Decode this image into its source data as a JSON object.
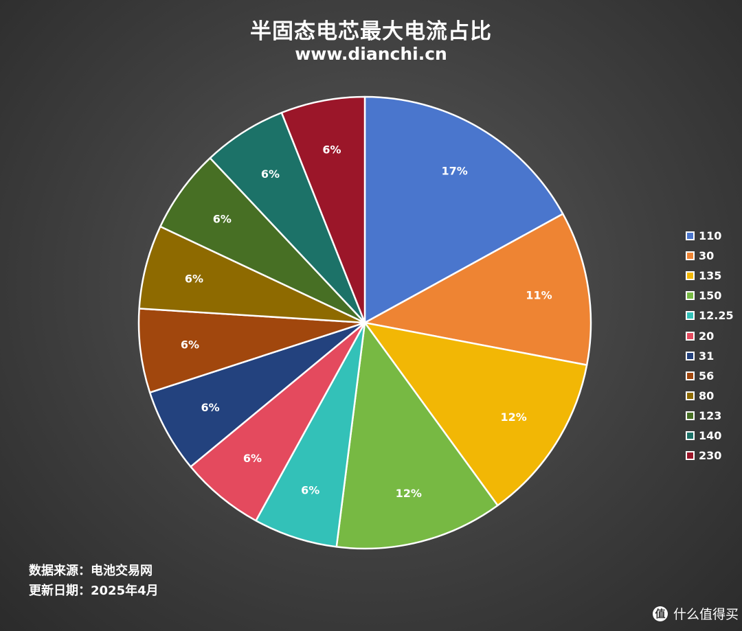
{
  "title": "半固态电芯最大电流占比",
  "subtitle": "www.dianchi.cn",
  "footer": {
    "source": "数据来源：电池交易网",
    "updated": "更新日期：2025年4月"
  },
  "watermark": {
    "logo_text": "值",
    "text": "什么值得买"
  },
  "chart_data": {
    "type": "pie",
    "title": "半固态电芯最大电流占比",
    "legend_position": "right",
    "slices": [
      {
        "label": "110",
        "value": 17,
        "display": "17%",
        "color": "#4a76cd"
      },
      {
        "label": "30",
        "value": 11,
        "display": "11%",
        "color": "#ee8433"
      },
      {
        "label": "135",
        "value": 12,
        "display": "12%",
        "color": "#f2b705"
      },
      {
        "label": "150",
        "value": 12,
        "display": "12%",
        "color": "#77b943"
      },
      {
        "label": "12.25",
        "value": 6,
        "display": "6%",
        "color": "#33c1b8"
      },
      {
        "label": "20",
        "value": 6,
        "display": "6%",
        "color": "#e44a5e"
      },
      {
        "label": "31",
        "value": 6,
        "display": "6%",
        "color": "#23427e"
      },
      {
        "label": "56",
        "value": 6,
        "display": "6%",
        "color": "#a1470d"
      },
      {
        "label": "80",
        "value": 6,
        "display": "6%",
        "color": "#8e6a00"
      },
      {
        "label": "123",
        "value": 6,
        "display": "6%",
        "color": "#476f24"
      },
      {
        "label": "140",
        "value": 6,
        "display": "6%",
        "color": "#1c7268"
      },
      {
        "label": "230",
        "value": 6,
        "display": "6%",
        "color": "#9b1629"
      }
    ]
  }
}
